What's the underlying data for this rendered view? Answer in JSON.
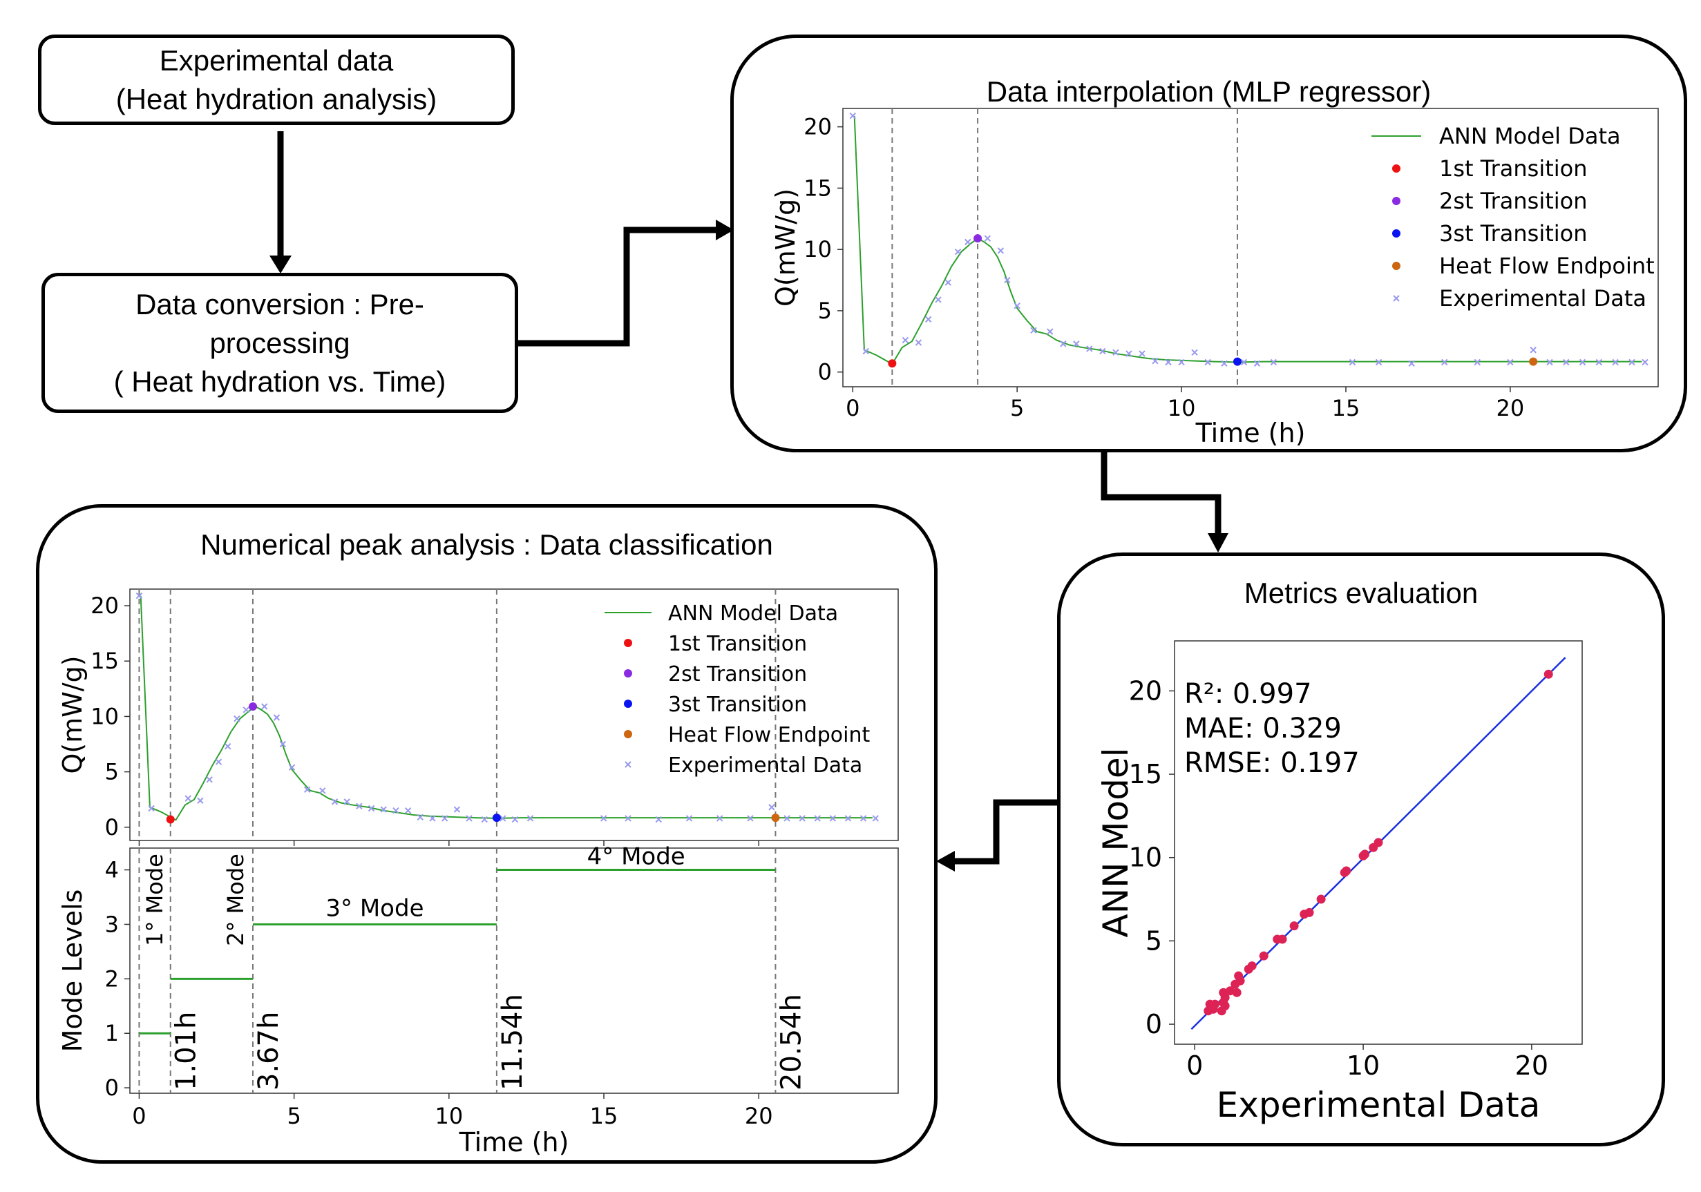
{
  "boxes": {
    "experimental": {
      "line1": "Experimental data",
      "line2": "(Heat hydration analysis)"
    },
    "conversion": {
      "line1": "Data conversion : Pre-",
      "line2": "processing",
      "line3": "( Heat hydration vs. Time)"
    }
  },
  "panels": {
    "interpolation": {
      "title": "Data interpolation (MLP regressor)"
    },
    "metrics": {
      "title": "Metrics evaluation"
    },
    "peak": {
      "title": "Numerical peak analysis : Data classification"
    }
  },
  "colors": {
    "model": "#2ca02c",
    "first": "#ee1111",
    "second": "#8a2be2",
    "third": "#0a14f0",
    "endpoint": "#cc6611",
    "experimental": "#9999ee",
    "fitline": "#1a30e0",
    "scatter": "#dd2255"
  },
  "chart_data": [
    {
      "id": "interp",
      "type": "line",
      "title": "Data interpolation (MLP regressor)",
      "xlabel": "Time (h)",
      "ylabel": "Q(mW/g)",
      "xlim": [
        -0.3,
        24.5
      ],
      "ylim": [
        -1.2,
        21.5
      ],
      "xticks": [
        0,
        5,
        10,
        15,
        20
      ],
      "yticks": [
        0,
        5,
        10,
        15,
        20
      ],
      "vlines": [
        1.2,
        3.8,
        11.7
      ],
      "model": {
        "name": "ANN Model Data",
        "x": [
          0.05,
          0.35,
          0.7,
          1.2,
          1.5,
          1.8,
          2.1,
          2.4,
          2.7,
          3.0,
          3.3,
          3.6,
          3.8,
          4.0,
          4.2,
          4.4,
          4.6,
          4.8,
          5.0,
          5.3,
          5.6,
          5.9,
          6.2,
          6.6,
          7.0,
          7.5,
          8.0,
          8.5,
          9.0,
          9.5,
          10.0,
          10.5,
          11.0,
          11.7,
          12.5,
          14,
          16,
          18,
          20,
          22,
          24
        ],
        "y": [
          20.9,
          1.8,
          1.4,
          0.65,
          2.0,
          2.5,
          4.0,
          5.6,
          7.0,
          8.6,
          9.8,
          10.5,
          10.9,
          10.6,
          10.2,
          9.4,
          8.2,
          6.6,
          5.2,
          4.2,
          3.3,
          3.1,
          2.6,
          2.2,
          2.0,
          1.8,
          1.5,
          1.3,
          1.1,
          1.0,
          0.95,
          0.9,
          0.85,
          0.8,
          0.85,
          0.85,
          0.85,
          0.85,
          0.85,
          0.85,
          0.85
        ]
      },
      "transitions": [
        {
          "name": "1st Transition",
          "x": 1.2,
          "y": 0.7
        },
        {
          "name": "2st Transition",
          "x": 3.8,
          "y": 10.9
        },
        {
          "name": "3st Transition",
          "x": 11.7,
          "y": 0.85
        },
        {
          "name": "Heat Flow Endpoint",
          "x": 20.7,
          "y": 0.85
        }
      ],
      "experimental": {
        "name": "Experimental Data",
        "x": [
          0.0,
          0.4,
          1.6,
          2.0,
          2.3,
          2.6,
          2.9,
          3.2,
          3.5,
          4.1,
          4.5,
          4.7,
          5.0,
          5.5,
          6.0,
          6.4,
          6.8,
          7.2,
          7.6,
          8.0,
          8.4,
          8.8,
          9.2,
          9.6,
          10.0,
          10.4,
          10.8,
          11.3,
          11.9,
          12.3,
          12.8,
          15.2,
          16.0,
          17.0,
          18.0,
          19.0,
          20.0,
          20.7,
          21.2,
          21.7,
          22.2,
          22.7,
          23.2,
          23.7,
          24.1
        ],
        "y": [
          20.9,
          1.7,
          2.6,
          2.4,
          4.3,
          5.9,
          7.3,
          9.8,
          10.6,
          10.9,
          9.9,
          7.5,
          5.4,
          3.4,
          3.3,
          2.3,
          2.3,
          1.9,
          1.7,
          1.6,
          1.5,
          1.5,
          0.9,
          0.8,
          0.8,
          1.6,
          0.8,
          0.7,
          0.8,
          0.7,
          0.8,
          0.8,
          0.8,
          0.7,
          0.8,
          0.8,
          0.8,
          1.8,
          0.8,
          0.8,
          0.8,
          0.8,
          0.8,
          0.8,
          0.8
        ]
      }
    },
    {
      "id": "metrics",
      "type": "scatter",
      "xlabel": "Experimental Data",
      "ylabel": "ANN Model",
      "xlim": [
        -1.2,
        23
      ],
      "ylim": [
        -1.2,
        23
      ],
      "xticks": [
        0,
        10,
        20
      ],
      "yticks": [
        0,
        5,
        10,
        15,
        20
      ],
      "annotations": [
        "R²: 0.997",
        "MAE: 0.329",
        "RMSE: 0.197"
      ],
      "fit_line": [
        [
          -0.2,
          -0.3
        ],
        [
          22,
          22
        ]
      ],
      "points": [
        [
          0.8,
          0.8
        ],
        [
          0.9,
          1.2
        ],
        [
          1.0,
          1.1
        ],
        [
          1.1,
          0.9
        ],
        [
          1.2,
          1.2
        ],
        [
          1.6,
          0.8
        ],
        [
          1.7,
          1.3
        ],
        [
          1.7,
          1.9
        ],
        [
          1.8,
          1.6
        ],
        [
          1.8,
          1.1
        ],
        [
          2.1,
          2.0
        ],
        [
          2.4,
          2.4
        ],
        [
          2.5,
          1.9
        ],
        [
          2.6,
          2.9
        ],
        [
          2.7,
          2.6
        ],
        [
          3.2,
          3.3
        ],
        [
          3.4,
          3.5
        ],
        [
          4.1,
          4.1
        ],
        [
          4.9,
          5.1
        ],
        [
          5.2,
          5.1
        ],
        [
          5.9,
          5.9
        ],
        [
          6.5,
          6.6
        ],
        [
          6.8,
          6.7
        ],
        [
          7.5,
          7.5
        ],
        [
          8.9,
          9.1
        ],
        [
          9.0,
          9.2
        ],
        [
          10.0,
          10.1
        ],
        [
          10.1,
          10.2
        ],
        [
          10.6,
          10.6
        ],
        [
          10.9,
          10.9
        ],
        [
          21.0,
          21.0
        ]
      ]
    },
    {
      "id": "peak",
      "type": "line",
      "title": "Numerical peak analysis : Data classification",
      "xlabel": "Time (h)",
      "ylabel": "Q(mW/g)",
      "ylabel2": "Mode Levels",
      "xlim": [
        -0.3,
        24.5
      ],
      "ylim": [
        -1.2,
        21.5
      ],
      "ylim2": [
        -0.1,
        4.4
      ],
      "xticks": [
        0,
        5,
        10,
        15,
        20
      ],
      "yticks": [
        0,
        5,
        10,
        15,
        20
      ],
      "yticks2": [
        0,
        1,
        2,
        3,
        4
      ],
      "vlines": [
        0,
        1.01,
        3.67,
        11.54,
        20.54
      ],
      "modes": [
        {
          "level": 1,
          "x0": 0,
          "x1": 1.01,
          "label": "1° Mode"
        },
        {
          "level": 2,
          "x0": 1.01,
          "x1": 3.67,
          "label": "2° Mode"
        },
        {
          "level": 3,
          "x0": 3.67,
          "x1": 11.54,
          "label": "3° Mode"
        },
        {
          "level": 4,
          "x0": 11.54,
          "x1": 20.54,
          "label": "4° Mode"
        }
      ],
      "boundaries": [
        "1.01h",
        "3.67h",
        "11.54h",
        "20.54h"
      ]
    }
  ]
}
